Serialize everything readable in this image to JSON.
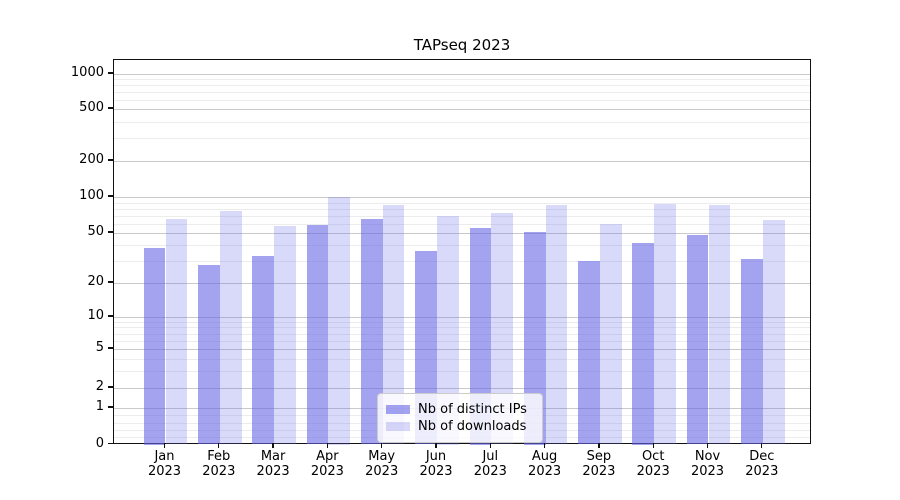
{
  "title": "TAPseq 2023",
  "chart_data": {
    "type": "bar",
    "title": "TAPseq 2023",
    "categories": [
      "Jan 2023",
      "Feb 2023",
      "Mar 2023",
      "Apr 2023",
      "May 2023",
      "Jun 2023",
      "Jul 2023",
      "Aug 2023",
      "Sep 2023",
      "Oct 2023",
      "Nov 2023",
      "Dec 2023"
    ],
    "series": [
      {
        "name": "Nb of distinct IPs",
        "color": "rgba(102,102,230,0.6)",
        "values": [
          38,
          28,
          33,
          58,
          65,
          36,
          55,
          51,
          30,
          42,
          48,
          31
        ]
      },
      {
        "name": "Nb of downloads",
        "color": "rgba(102,102,230,0.25)",
        "values": [
          66,
          77,
          57,
          100,
          85,
          70,
          73,
          85,
          59,
          88,
          85,
          64
        ]
      }
    ],
    "xlabel": "",
    "ylabel": "",
    "yscale": "symlog",
    "ylim": [
      0,
      1300
    ],
    "yticks": [
      0,
      1,
      2,
      5,
      10,
      20,
      50,
      100,
      200,
      500,
      1000
    ],
    "ytick_labels": [
      "0",
      "1",
      "2",
      "5",
      "10",
      "20",
      "50",
      "100",
      "200",
      "500",
      "1000"
    ],
    "minor_gridlines": [
      0.2,
      0.4,
      0.6,
      0.8,
      3,
      4,
      6,
      7,
      8,
      9,
      30,
      40,
      60,
      70,
      80,
      90,
      300,
      400,
      600,
      700,
      800,
      900
    ],
    "grid": true,
    "legend_position": "lower center",
    "bar_edge": "none"
  }
}
